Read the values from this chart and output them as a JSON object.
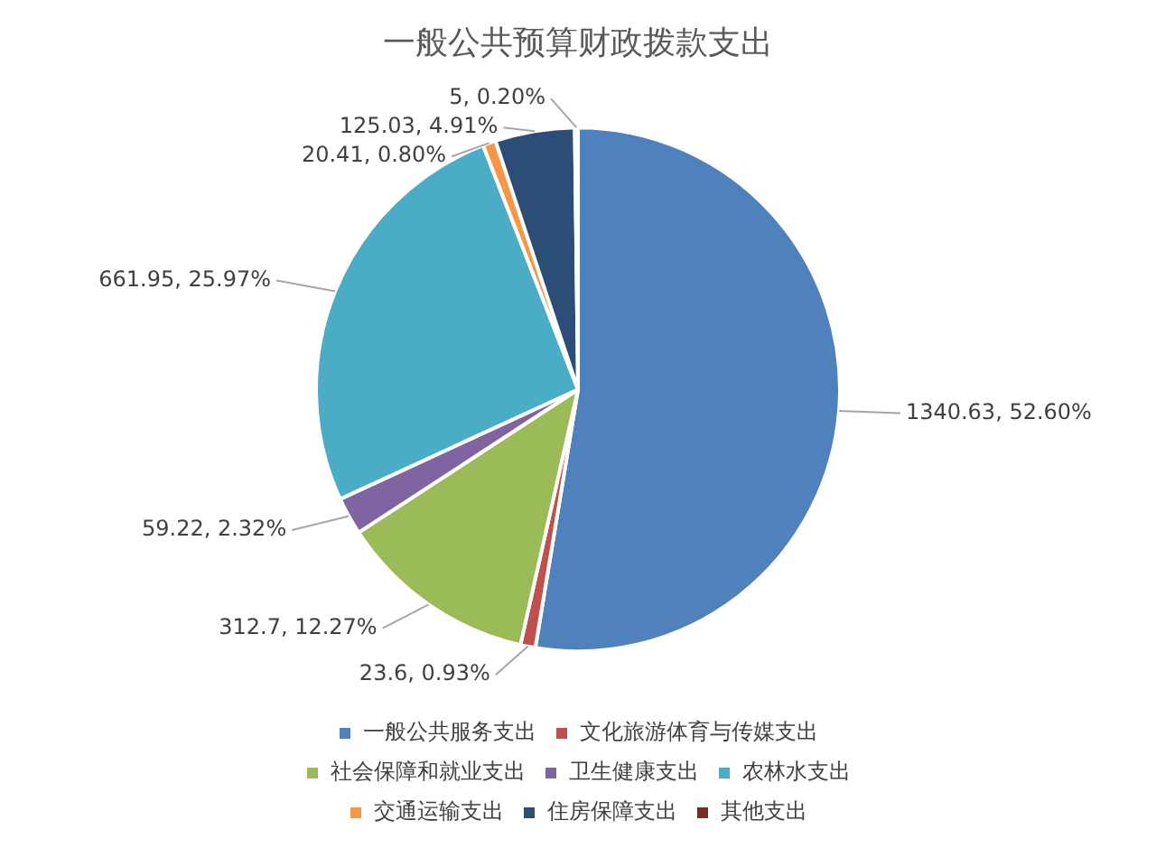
{
  "chart_data": {
    "type": "pie",
    "title": "一般公共预算财政拨款支出",
    "categories": [
      "一般公共服务支出",
      "文化旅游体育与传媒支出",
      "社会保障和就业支出",
      "卫生健康支出",
      "农林水支出",
      "交通运输支出",
      "住房保障支出",
      "其他支出"
    ],
    "values": [
      1340.63,
      23.6,
      312.7,
      59.22,
      661.95,
      20.41,
      125.03,
      5
    ],
    "value_labels": [
      "1340.63, 52.60%",
      "23.6, 0.93%",
      "312.7, 12.27%",
      "59.22, 2.32%",
      "661.95, 25.97%",
      "20.41, 0.80%",
      "125.03, 4.91%",
      "5, 0.20%"
    ],
    "colors": [
      "#4f81bd",
      "#c0504d",
      "#9bbb59",
      "#8064a2",
      "#4bacc6",
      "#f79646",
      "#2c4d75",
      "#772c2a"
    ],
    "legend": "bottom"
  }
}
